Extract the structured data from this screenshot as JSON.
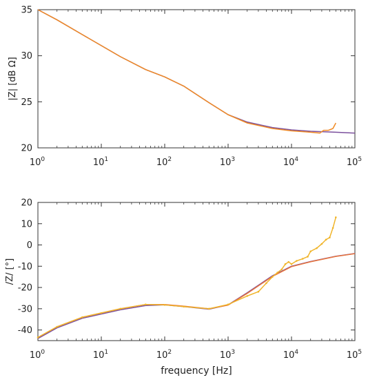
{
  "colors": {
    "magnitude_fit": "#7b4f9d",
    "magnitude_measured": "#f08a24",
    "phase_fit": "#7b4f9d",
    "phase_measured": "#f0b429",
    "phase_fit_secondary": "#e8743b"
  },
  "chart_data": [
    {
      "type": "line",
      "title": "",
      "xlabel": "",
      "ylabel": "|Z| [dB  Ω]",
      "xscale": "log",
      "xlim": [
        1,
        100000
      ],
      "ylim": [
        20,
        35
      ],
      "grid": false,
      "x_ticks": [
        {
          "base": "10",
          "exp": "0"
        },
        {
          "base": "10",
          "exp": "1"
        },
        {
          "base": "10",
          "exp": "2"
        },
        {
          "base": "10",
          "exp": "3"
        },
        {
          "base": "10",
          "exp": "4"
        },
        {
          "base": "10",
          "exp": "5"
        }
      ],
      "y_ticks": [
        "20",
        "25",
        "30",
        "35"
      ],
      "y_tick_values": [
        20,
        25,
        30,
        35
      ],
      "series": [
        {
          "color_key": "magnitude_fit",
          "markers": false,
          "x": [
            1,
            2,
            5,
            10,
            20,
            50,
            100,
            200,
            500,
            1000,
            2000,
            5000,
            10000,
            20000,
            50000,
            100000
          ],
          "y": [
            35.0,
            33.9,
            32.3,
            31.1,
            29.9,
            28.5,
            27.7,
            26.7,
            24.9,
            23.6,
            22.8,
            22.2,
            21.95,
            21.8,
            21.7,
            21.6
          ]
        },
        {
          "color_key": "magnitude_measured",
          "markers": false,
          "x": [
            1,
            2,
            5,
            10,
            20,
            50,
            100,
            200,
            500,
            1000,
            2000,
            5000,
            10000,
            20000,
            28000,
            32000,
            38000,
            45000,
            50000
          ],
          "y": [
            35.0,
            33.9,
            32.3,
            31.1,
            29.9,
            28.5,
            27.7,
            26.7,
            24.9,
            23.6,
            22.7,
            22.1,
            21.85,
            21.7,
            21.6,
            21.9,
            21.9,
            22.1,
            22.7
          ]
        }
      ]
    },
    {
      "type": "line",
      "title": "",
      "xlabel": "frequency [Hz]",
      "ylabel": "/Z/ [°]",
      "xscale": "log",
      "xlim": [
        1,
        100000
      ],
      "ylim": [
        -45,
        20
      ],
      "grid": false,
      "x_ticks": [
        {
          "base": "10",
          "exp": "0"
        },
        {
          "base": "10",
          "exp": "1"
        },
        {
          "base": "10",
          "exp": "2"
        },
        {
          "base": "10",
          "exp": "3"
        },
        {
          "base": "10",
          "exp": "4"
        },
        {
          "base": "10",
          "exp": "5"
        }
      ],
      "y_ticks": [
        "-40",
        "-30",
        "-20",
        "-10",
        "0",
        "10",
        "20"
      ],
      "y_tick_values": [
        -40,
        -30,
        -20,
        -10,
        0,
        10,
        20
      ],
      "series": [
        {
          "color_key": "phase_fit",
          "markers": false,
          "x": [
            1,
            2,
            5,
            10,
            20,
            50,
            100,
            200,
            500,
            1000,
            2000,
            5000,
            10000,
            20000,
            50000,
            100000
          ],
          "y": [
            -44.0,
            -39.0,
            -34.5,
            -32.5,
            -30.5,
            -28.5,
            -28.2,
            -29.0,
            -30.2,
            -28.2,
            -22.5,
            -14.5,
            -10.0,
            -7.8,
            -5.3,
            -4.0
          ]
        },
        {
          "color_key": "phase_fit_secondary",
          "markers": false,
          "x": [
            1,
            2,
            5,
            10,
            20,
            50,
            100,
            200,
            500,
            1000,
            2000,
            5000,
            10000,
            20000,
            50000,
            100000
          ],
          "y": [
            -43.5,
            -38.5,
            -34.0,
            -32.0,
            -30.0,
            -28.0,
            -28.0,
            -28.8,
            -30.0,
            -28.3,
            -22.8,
            -14.8,
            -10.2,
            -7.9,
            -5.4,
            -4.1
          ]
        },
        {
          "color_key": "phase_measured",
          "markers": true,
          "x": [
            1,
            2,
            5,
            10,
            20,
            50,
            100,
            200,
            500,
            1000,
            2000,
            3000,
            4000,
            5000,
            6000,
            7000,
            8000,
            9000,
            10000,
            12000,
            15000,
            18000,
            20000,
            25000,
            30000,
            35000,
            40000,
            45000,
            50000
          ],
          "y": [
            -43.5,
            -38.5,
            -34.0,
            -32.0,
            -30.0,
            -28.0,
            -28.2,
            -29.0,
            -30.0,
            -28.0,
            -24.0,
            -22.0,
            -18.0,
            -15.0,
            -13.0,
            -11.5,
            -9.0,
            -8.0,
            -9.0,
            -7.5,
            -6.5,
            -5.5,
            -3.0,
            -1.5,
            0.5,
            2.5,
            3.5,
            8.0,
            13.0
          ]
        }
      ]
    }
  ]
}
